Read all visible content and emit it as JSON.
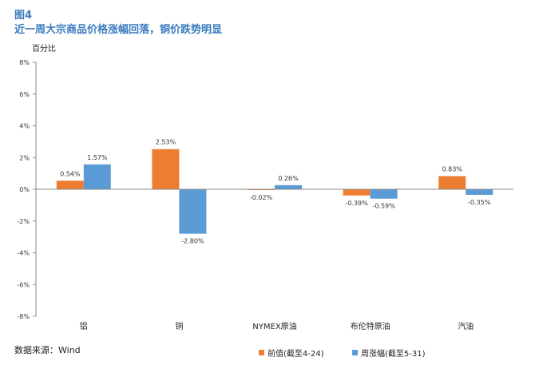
{
  "figure": {
    "number": "图4",
    "title": "近一周大宗商品价格涨幅回落，铜价跌势明显",
    "source": "数据来源：Wind"
  },
  "chart_data": {
    "type": "bar",
    "ylabel": "百分比",
    "xlabel": "",
    "categories": [
      "铝",
      "铜",
      "NYMEX原油",
      "布伦特原油",
      "汽油"
    ],
    "ylim": [
      -8,
      8
    ],
    "yticks": [
      "8%",
      "6%",
      "4%",
      "2%",
      "0%",
      "-2%",
      "-4%",
      "-6%",
      "-8%"
    ],
    "ytick_values": [
      8,
      6,
      4,
      2,
      0,
      -2,
      -4,
      -6,
      -8
    ],
    "grid": false,
    "legend_position": "bottom-right",
    "series": [
      {
        "name": "前值(截至4-24)",
        "color": "#ed7d31",
        "values": [
          0.54,
          2.53,
          -0.02,
          -0.39,
          0.83
        ],
        "labels": [
          "0.54%",
          "2.53%",
          "-0.02%",
          "-0.39%",
          "0.83%"
        ]
      },
      {
        "name": "周涨幅(截至5-31)",
        "color": "#5b9bd5",
        "values": [
          1.57,
          -2.8,
          0.26,
          -0.59,
          -0.35
        ],
        "labels": [
          "1.57%",
          "-2.80%",
          "0.26%",
          "-0.59%",
          "-0.35%"
        ]
      }
    ]
  }
}
